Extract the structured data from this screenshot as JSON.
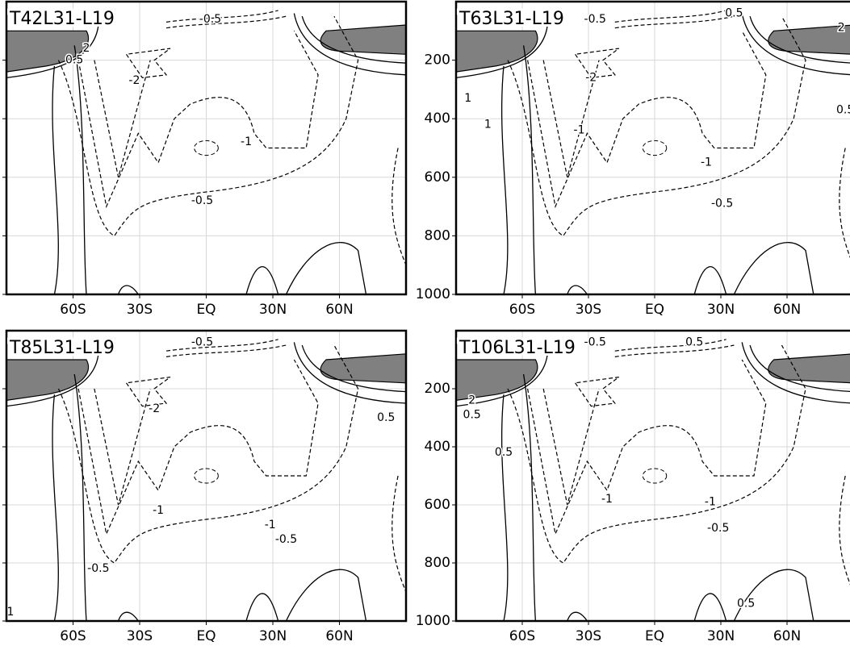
{
  "chart_data": [
    {
      "type": "contour",
      "title": "T42L31-L19",
      "xlim": [
        -90,
        90
      ],
      "ylim": [
        1000,
        0
      ],
      "xticks": [
        {
          "value": -60,
          "label": "60S"
        },
        {
          "value": -30,
          "label": "30S"
        },
        {
          "value": 0,
          "label": "EQ"
        },
        {
          "value": 30,
          "label": "30N"
        },
        {
          "value": 60,
          "label": "60N"
        }
      ],
      "yticks": [
        200,
        400,
        600,
        800,
        1000
      ],
      "show_ytick_labels": false,
      "grid": true,
      "shade_color": "#808080",
      "contour_labels": [
        -0.5,
        2,
        0.5,
        -2,
        -1,
        -0.5
      ]
    },
    {
      "type": "contour",
      "title": "T63L31-L19",
      "xlim": [
        -90,
        90
      ],
      "ylim": [
        1000,
        0
      ],
      "xticks": [
        {
          "value": -60,
          "label": "60S"
        },
        {
          "value": -30,
          "label": "30S"
        },
        {
          "value": 0,
          "label": "EQ"
        },
        {
          "value": 30,
          "label": "30N"
        },
        {
          "value": 60,
          "label": "60N"
        }
      ],
      "yticks": [
        200,
        400,
        600,
        800,
        1000
      ],
      "show_ytick_labels": true,
      "grid": true,
      "shade_color": "#808080",
      "contour_labels": [
        -0.5,
        0.5,
        2,
        -2,
        1,
        1,
        -1,
        -1,
        0.5,
        -0.5
      ]
    },
    {
      "type": "contour",
      "title": "T85L31-L19",
      "xlim": [
        -90,
        90
      ],
      "ylim": [
        1000,
        0
      ],
      "xticks": [
        {
          "value": -60,
          "label": "60S"
        },
        {
          "value": -30,
          "label": "30S"
        },
        {
          "value": 0,
          "label": "EQ"
        },
        {
          "value": 30,
          "label": "30N"
        },
        {
          "value": 60,
          "label": "60N"
        }
      ],
      "yticks": [
        200,
        400,
        600,
        800,
        1000
      ],
      "show_ytick_labels": false,
      "grid": true,
      "shade_color": "#808080",
      "contour_labels": [
        -0.5,
        -2,
        0.5,
        -1,
        -1,
        -0.5,
        -0.5,
        1
      ]
    },
    {
      "type": "contour",
      "title": "T106L31-L19",
      "xlim": [
        -90,
        90
      ],
      "ylim": [
        1000,
        0
      ],
      "xticks": [
        {
          "value": -60,
          "label": "60S"
        },
        {
          "value": -30,
          "label": "30S"
        },
        {
          "value": 0,
          "label": "EQ"
        },
        {
          "value": 30,
          "label": "30N"
        },
        {
          "value": 60,
          "label": "60N"
        }
      ],
      "yticks": [
        200,
        400,
        600,
        800,
        1000
      ],
      "show_ytick_labels": true,
      "grid": true,
      "shade_color": "#808080",
      "contour_labels": [
        -0.5,
        0.5,
        2,
        0.5,
        0.5,
        -1,
        -1,
        -0.5,
        0.5
      ]
    }
  ]
}
